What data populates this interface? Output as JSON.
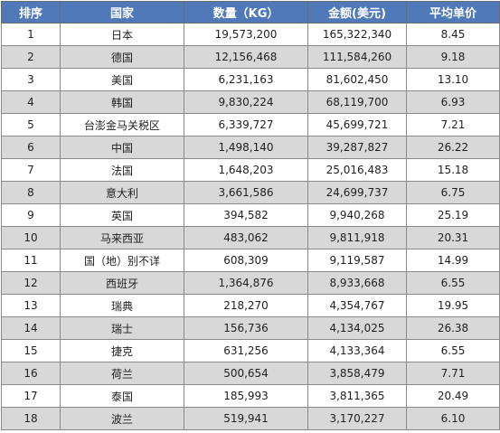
{
  "table": {
    "headers": {
      "rank": "排序",
      "country": "国家",
      "quantity": "数量（KG）",
      "amount": "金额(美元)",
      "unit_price": "平均单价"
    },
    "rows": [
      {
        "rank": "1",
        "country": "日本",
        "quantity": "19,573,200",
        "amount": "165,322,340",
        "unit_price": "8.45"
      },
      {
        "rank": "2",
        "country": "德国",
        "quantity": "12,156,468",
        "amount": "111,584,260",
        "unit_price": "9.18"
      },
      {
        "rank": "3",
        "country": "美国",
        "quantity": "6,231,163",
        "amount": "81,602,450",
        "unit_price": "13.10"
      },
      {
        "rank": "4",
        "country": "韩国",
        "quantity": "9,830,224",
        "amount": "68,119,700",
        "unit_price": "6.93"
      },
      {
        "rank": "5",
        "country": "台澎金马关税区",
        "quantity": "6,339,727",
        "amount": "45,699,721",
        "unit_price": "7.21"
      },
      {
        "rank": "6",
        "country": "中国",
        "quantity": "1,498,140",
        "amount": "39,287,827",
        "unit_price": "26.22"
      },
      {
        "rank": "7",
        "country": "法国",
        "quantity": "1,648,203",
        "amount": "25,016,483",
        "unit_price": "15.18"
      },
      {
        "rank": "8",
        "country": "意大利",
        "quantity": "3,661,586",
        "amount": "24,699,737",
        "unit_price": "6.75"
      },
      {
        "rank": "9",
        "country": "英国",
        "quantity": "394,582",
        "amount": "9,940,268",
        "unit_price": "25.19"
      },
      {
        "rank": "10",
        "country": "马来西亚",
        "quantity": "483,062",
        "amount": "9,811,918",
        "unit_price": "20.31"
      },
      {
        "rank": "11",
        "country": "国（地）别不详",
        "quantity": "608,309",
        "amount": "9,119,587",
        "unit_price": "14.99"
      },
      {
        "rank": "12",
        "country": "西班牙",
        "quantity": "1,364,876",
        "amount": "8,933,668",
        "unit_price": "6.55"
      },
      {
        "rank": "13",
        "country": "瑞典",
        "quantity": "218,270",
        "amount": "4,354,767",
        "unit_price": "19.95"
      },
      {
        "rank": "14",
        "country": "瑞士",
        "quantity": "156,736",
        "amount": "4,134,025",
        "unit_price": "26.38"
      },
      {
        "rank": "15",
        "country": "捷克",
        "quantity": "631,256",
        "amount": "4,133,364",
        "unit_price": "6.55"
      },
      {
        "rank": "16",
        "country": "荷兰",
        "quantity": "500,654",
        "amount": "3,858,479",
        "unit_price": "7.71"
      },
      {
        "rank": "17",
        "country": "泰国",
        "quantity": "185,993",
        "amount": "3,811,365",
        "unit_price": "20.49"
      },
      {
        "rank": "18",
        "country": "波兰",
        "quantity": "519,941",
        "amount": "3,170,227",
        "unit_price": "6.10"
      }
    ]
  },
  "colors": {
    "header_bg": "#4f79b8",
    "header_text": "#ffffff",
    "stripe_bg": "#d8d8d8",
    "border": "#8a8a8a"
  }
}
